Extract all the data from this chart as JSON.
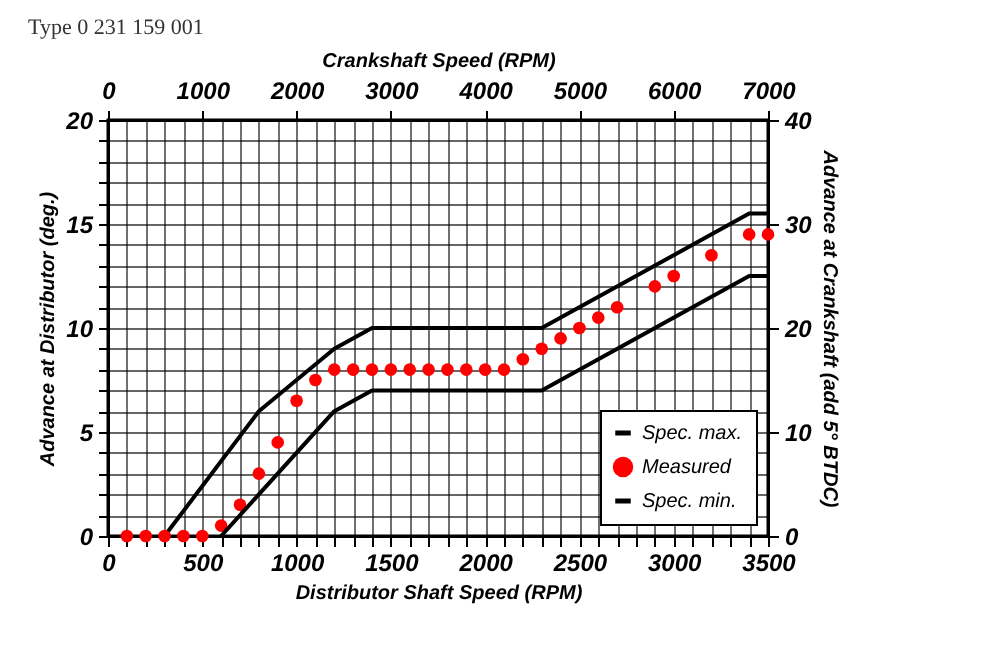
{
  "chart_data": {
    "type": "line",
    "title": "Type 0 231 159 001",
    "xlabel": "Distributor Shaft Speed (RPM)",
    "ylabel": "Advance at Distributor (deg.)",
    "x2label": "Crankshaft Speed (RPM)",
    "y2label": "Advance at Crankshaft (add 5° BTDC)",
    "xlim": [
      0,
      3500
    ],
    "xticks": [
      0,
      {
        "value": 100,
        "label": null
      },
      {
        "value": 200,
        "label": null
      },
      {
        "value": 300,
        "label": null
      },
      {
        "value": 400,
        "label": null
      },
      500,
      {
        "value": 600,
        "label": null
      },
      {
        "value": 700,
        "label": null
      },
      {
        "value": 800,
        "label": null
      },
      {
        "value": 900,
        "label": null
      },
      1000,
      {
        "value": 1100,
        "label": null
      },
      {
        "value": 1200,
        "label": null
      },
      {
        "value": 1300,
        "label": null
      },
      {
        "value": 1400,
        "label": null
      },
      1500,
      {
        "value": 1600,
        "label": null
      },
      {
        "value": 1700,
        "label": null
      },
      {
        "value": 1800,
        "label": null
      },
      {
        "value": 1900,
        "label": null
      },
      2000,
      {
        "value": 2100,
        "label": null
      },
      {
        "value": 2200,
        "label": null
      },
      {
        "value": 2300,
        "label": null
      },
      {
        "value": 2400,
        "label": null
      },
      2500,
      {
        "value": 2600,
        "label": null
      },
      {
        "value": 2700,
        "label": null
      },
      {
        "value": 2800,
        "label": null
      },
      {
        "value": 2900,
        "label": null
      },
      3000,
      {
        "value": 3100,
        "label": null
      },
      {
        "value": 3200,
        "label": null
      },
      {
        "value": 3300,
        "label": null
      },
      {
        "value": 3400,
        "label": null
      },
      3500
    ],
    "ylim": [
      0,
      20
    ],
    "yticks": [
      0,
      {
        "value": 1,
        "label": null
      },
      {
        "value": 2,
        "label": null
      },
      {
        "value": 3,
        "label": null
      },
      {
        "value": 4,
        "label": null
      },
      5,
      {
        "value": 6,
        "label": null
      },
      {
        "value": 7,
        "label": null
      },
      {
        "value": 8,
        "label": null
      },
      {
        "value": 9,
        "label": null
      },
      10,
      {
        "value": 11,
        "label": null
      },
      {
        "value": 12,
        "label": null
      },
      {
        "value": 13,
        "label": null
      },
      {
        "value": 14,
        "label": null
      },
      15,
      {
        "value": 16,
        "label": null
      },
      {
        "value": 17,
        "label": null
      },
      {
        "value": 18,
        "label": null
      },
      {
        "value": 19,
        "label": null
      },
      20
    ],
    "x2lim": [
      0,
      7000
    ],
    "x2ticks": [
      0,
      1000,
      2000,
      3000,
      4000,
      5000,
      6000,
      7000
    ],
    "y2lim": [
      0,
      40
    ],
    "y2ticks": [
      0,
      10,
      20,
      30,
      40
    ],
    "grid": true,
    "legend": "bottom right",
    "series": [
      {
        "name": "Spec. max.",
        "type": "line",
        "color": "#000000",
        "x": [
          300,
          800,
          1000,
          1200,
          1400,
          2300,
          3400,
          3500
        ],
        "values": [
          0,
          6,
          7.5,
          9,
          10,
          10,
          15.5,
          15.5
        ]
      },
      {
        "name": "Measured",
        "type": "scatter",
        "marker": "circle",
        "color": "#ff0000",
        "x": [
          100,
          200,
          300,
          400,
          500,
          600,
          700,
          800,
          900,
          1000,
          1100,
          1200,
          1300,
          1400,
          1500,
          1600,
          1700,
          1800,
          1900,
          2000,
          2100,
          2200,
          2300,
          2400,
          2500,
          2600,
          2700,
          2900,
          3000,
          3200,
          3400,
          3500
        ],
        "values": [
          0,
          0,
          0,
          0,
          0,
          0.5,
          1.5,
          3,
          4.5,
          6.5,
          7.5,
          8,
          8,
          8,
          8,
          8,
          8,
          8,
          8,
          8,
          8,
          8.5,
          9,
          9.5,
          10,
          10.5,
          11,
          12,
          12.5,
          13.5,
          14.5,
          14.5
        ]
      },
      {
        "name": "Spec. min.",
        "type": "line",
        "color": "#000000",
        "x": [
          600,
          800,
          1200,
          1400,
          2300,
          3400,
          3500
        ],
        "values": [
          0,
          2,
          6,
          7,
          7,
          12.5,
          12.5
        ]
      }
    ]
  }
}
